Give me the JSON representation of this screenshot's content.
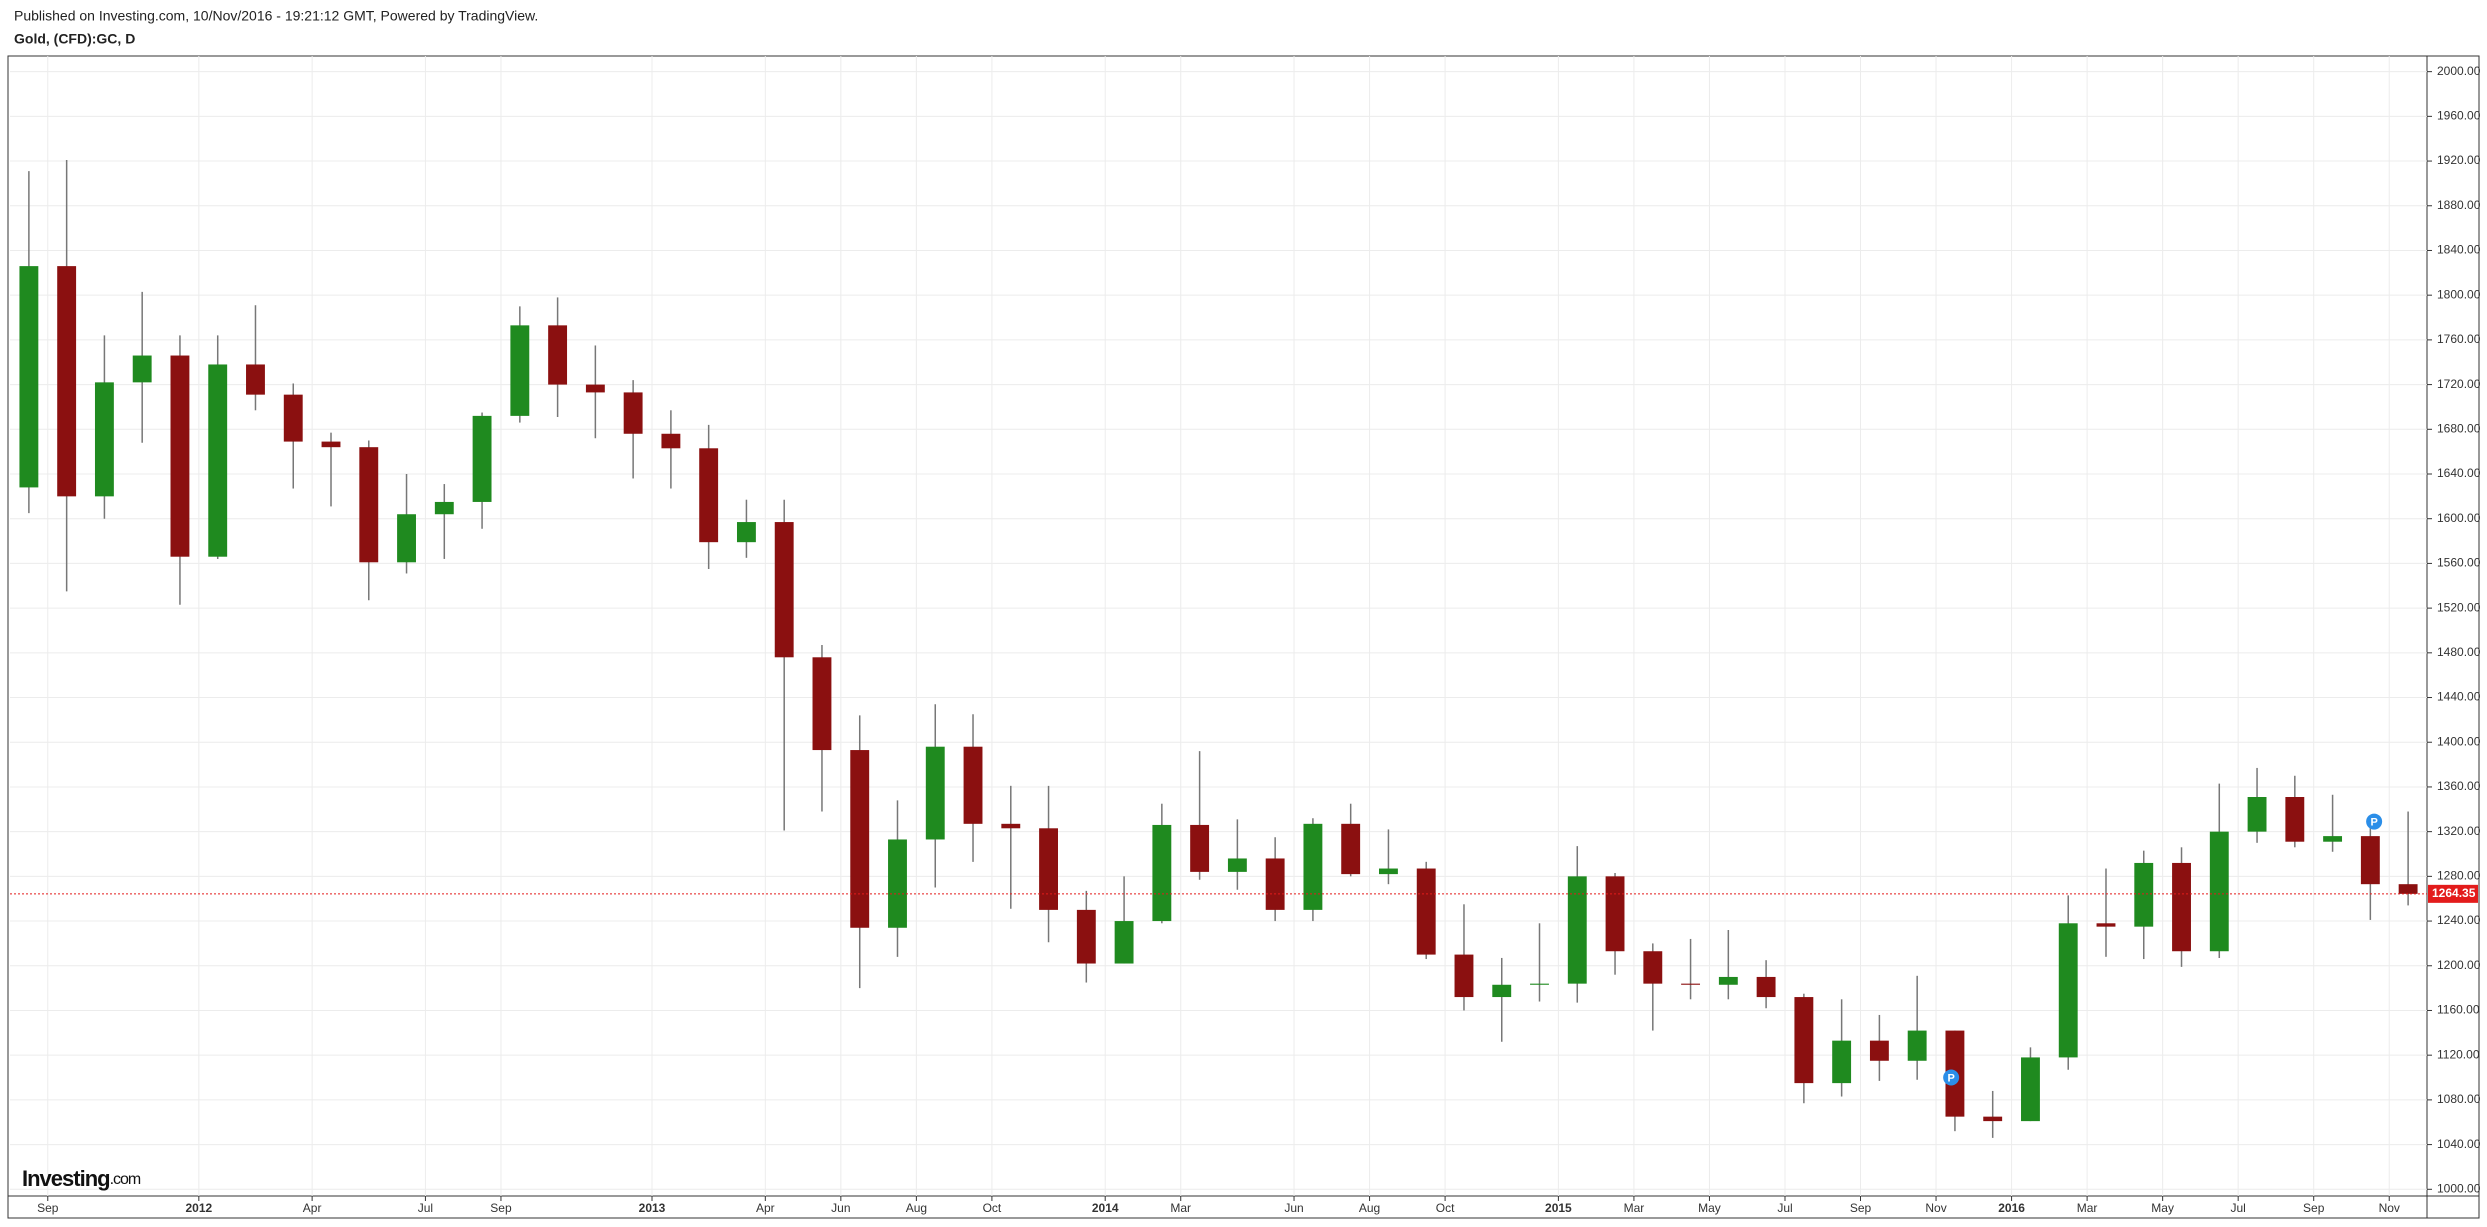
{
  "header": {
    "published": "Published on Investing.com, 10/Nov/2016 - 19:21:12 GMT, Powered by TradingView.",
    "symbol": "Gold, (CFD):GC, D"
  },
  "logo": {
    "brand": "Investing",
    "suffix": ".com"
  },
  "chart_data": {
    "type": "candlestick",
    "categories": [
      null,
      "Sep",
      null,
      null,
      null,
      "2012",
      null,
      null,
      "Apr",
      null,
      null,
      "Jul",
      null,
      "Sep",
      null,
      null,
      null,
      "2013",
      null,
      null,
      "Apr",
      null,
      "Jun",
      null,
      "Aug",
      null,
      "Oct",
      null,
      null,
      "2014",
      null,
      "Mar",
      null,
      null,
      "Jun",
      null,
      "Aug",
      null,
      "Oct",
      null,
      null,
      "2015",
      null,
      "Mar",
      null,
      "May",
      null,
      "Jul",
      null,
      "Sep",
      null,
      "Nov",
      null,
      "2016",
      null,
      "Mar",
      null,
      "May",
      null,
      "Jul",
      null,
      "Sep",
      null,
      "Nov"
    ],
    "open": [
      1628,
      1826,
      1620,
      1722,
      1746,
      1566,
      1738,
      1711,
      1669,
      1664,
      1561,
      1604,
      1615,
      1692,
      1773,
      1720,
      1713,
      1676,
      1663,
      1579,
      1597,
      1476,
      1393,
      1234,
      1313,
      1396,
      1327,
      1323,
      1250,
      1202,
      1240,
      1326,
      1284,
      1296,
      1250,
      1327,
      1282,
      1287,
      1210,
      1172,
      1183,
      1184,
      1280,
      1213,
      1184,
      1183,
      1190,
      1172,
      1095,
      1133,
      1115,
      1142,
      1065,
      1061,
      1118,
      1238,
      1235,
      1292,
      1213,
      1320,
      1351,
      1311,
      1316,
      1273
    ],
    "high": [
      1911,
      1921,
      1764,
      1803,
      1764,
      1764,
      1791,
      1721,
      1677,
      1670,
      1640,
      1631,
      1695,
      1790,
      1798,
      1755,
      1724,
      1697,
      1684,
      1617,
      1617,
      1487,
      1424,
      1348,
      1434,
      1425,
      1361,
      1361,
      1267,
      1280,
      1345,
      1392,
      1331,
      1315,
      1332,
      1345,
      1322,
      1293,
      1255,
      1207,
      1238,
      1307,
      1283,
      1220,
      1224,
      1232,
      1205,
      1175,
      1170,
      1156,
      1191,
      1142,
      1088,
      1127,
      1263,
      1287,
      1303,
      1306,
      1363,
      1377,
      1370,
      1353,
      1326,
      1338
    ],
    "low": [
      1605,
      1535,
      1600,
      1668,
      1523,
      1564,
      1697,
      1627,
      1611,
      1527,
      1551,
      1564,
      1591,
      1686,
      1691,
      1672,
      1636,
      1627,
      1555,
      1565,
      1321,
      1338,
      1180,
      1208,
      1270,
      1293,
      1251,
      1221,
      1185,
      1202,
      1238,
      1277,
      1268,
      1240,
      1240,
      1280,
      1273,
      1206,
      1160,
      1132,
      1168,
      1167,
      1192,
      1142,
      1170,
      1170,
      1162,
      1077,
      1083,
      1097,
      1098,
      1052,
      1046,
      1061,
      1107,
      1208,
      1206,
      1199,
      1207,
      1310,
      1306,
      1302,
      1241,
      1254
    ],
    "close": [
      1826,
      1620,
      1722,
      1746,
      1566,
      1738,
      1711,
      1669,
      1664,
      1561,
      1604,
      1615,
      1692,
      1773,
      1720,
      1713,
      1676,
      1663,
      1579,
      1597,
      1476,
      1393,
      1234,
      1313,
      1396,
      1327,
      1323,
      1250,
      1202,
      1240,
      1326,
      1284,
      1296,
      1250,
      1327,
      1282,
      1287,
      1210,
      1172,
      1183,
      1184,
      1280,
      1213,
      1184,
      1183,
      1190,
      1172,
      1095,
      1133,
      1115,
      1142,
      1065,
      1061,
      1118,
      1238,
      1235,
      1292,
      1213,
      1320,
      1351,
      1311,
      1316,
      1273,
      1264.35
    ],
    "up_color": "#1f8a1f",
    "down_color": "#8b1010",
    "current_price": 1264.35,
    "current_color": "#e31b1b",
    "annotations": [
      "P",
      "P"
    ],
    "ylim": [
      994,
      2014
    ],
    "yticks": [
      {
        "value": 1000,
        "label": "1000.00"
      },
      {
        "value": 1040,
        "label": "1040.00"
      },
      {
        "value": 1080,
        "label": "1080.00"
      },
      {
        "value": 1120,
        "label": "1120.00"
      },
      {
        "value": 1160,
        "label": "1160.00"
      },
      {
        "value": 1200,
        "label": "1200.00"
      },
      {
        "value": 1240,
        "label": "1240.00"
      },
      {
        "value": 1280,
        "label": "1280.00"
      },
      {
        "value": 1320,
        "label": "1320.00"
      },
      {
        "value": 1360,
        "label": "1360.00"
      },
      {
        "value": 1400,
        "label": "1400.00"
      },
      {
        "value": 1440,
        "label": "1440.00"
      },
      {
        "value": 1480,
        "label": "1480.00"
      },
      {
        "value": 1520,
        "label": "1520.00"
      },
      {
        "value": 1560,
        "label": "1560.00"
      },
      {
        "value": 1600,
        "label": "1600.00"
      },
      {
        "value": 1640,
        "label": "1640.00"
      },
      {
        "value": 1680,
        "label": "1680.00"
      },
      {
        "value": 1720,
        "label": "1720.00"
      },
      {
        "value": 1760,
        "label": "1760.00"
      },
      {
        "value": 1800,
        "label": "1800.00"
      },
      {
        "value": 1840,
        "label": "1840.00"
      },
      {
        "value": 1880,
        "label": "1880.00"
      },
      {
        "value": 1920,
        "label": "1920.00"
      },
      {
        "value": 1960,
        "label": "1960.00"
      },
      {
        "value": 2000,
        "label": "2000.00"
      }
    ],
    "grid": true
  }
}
